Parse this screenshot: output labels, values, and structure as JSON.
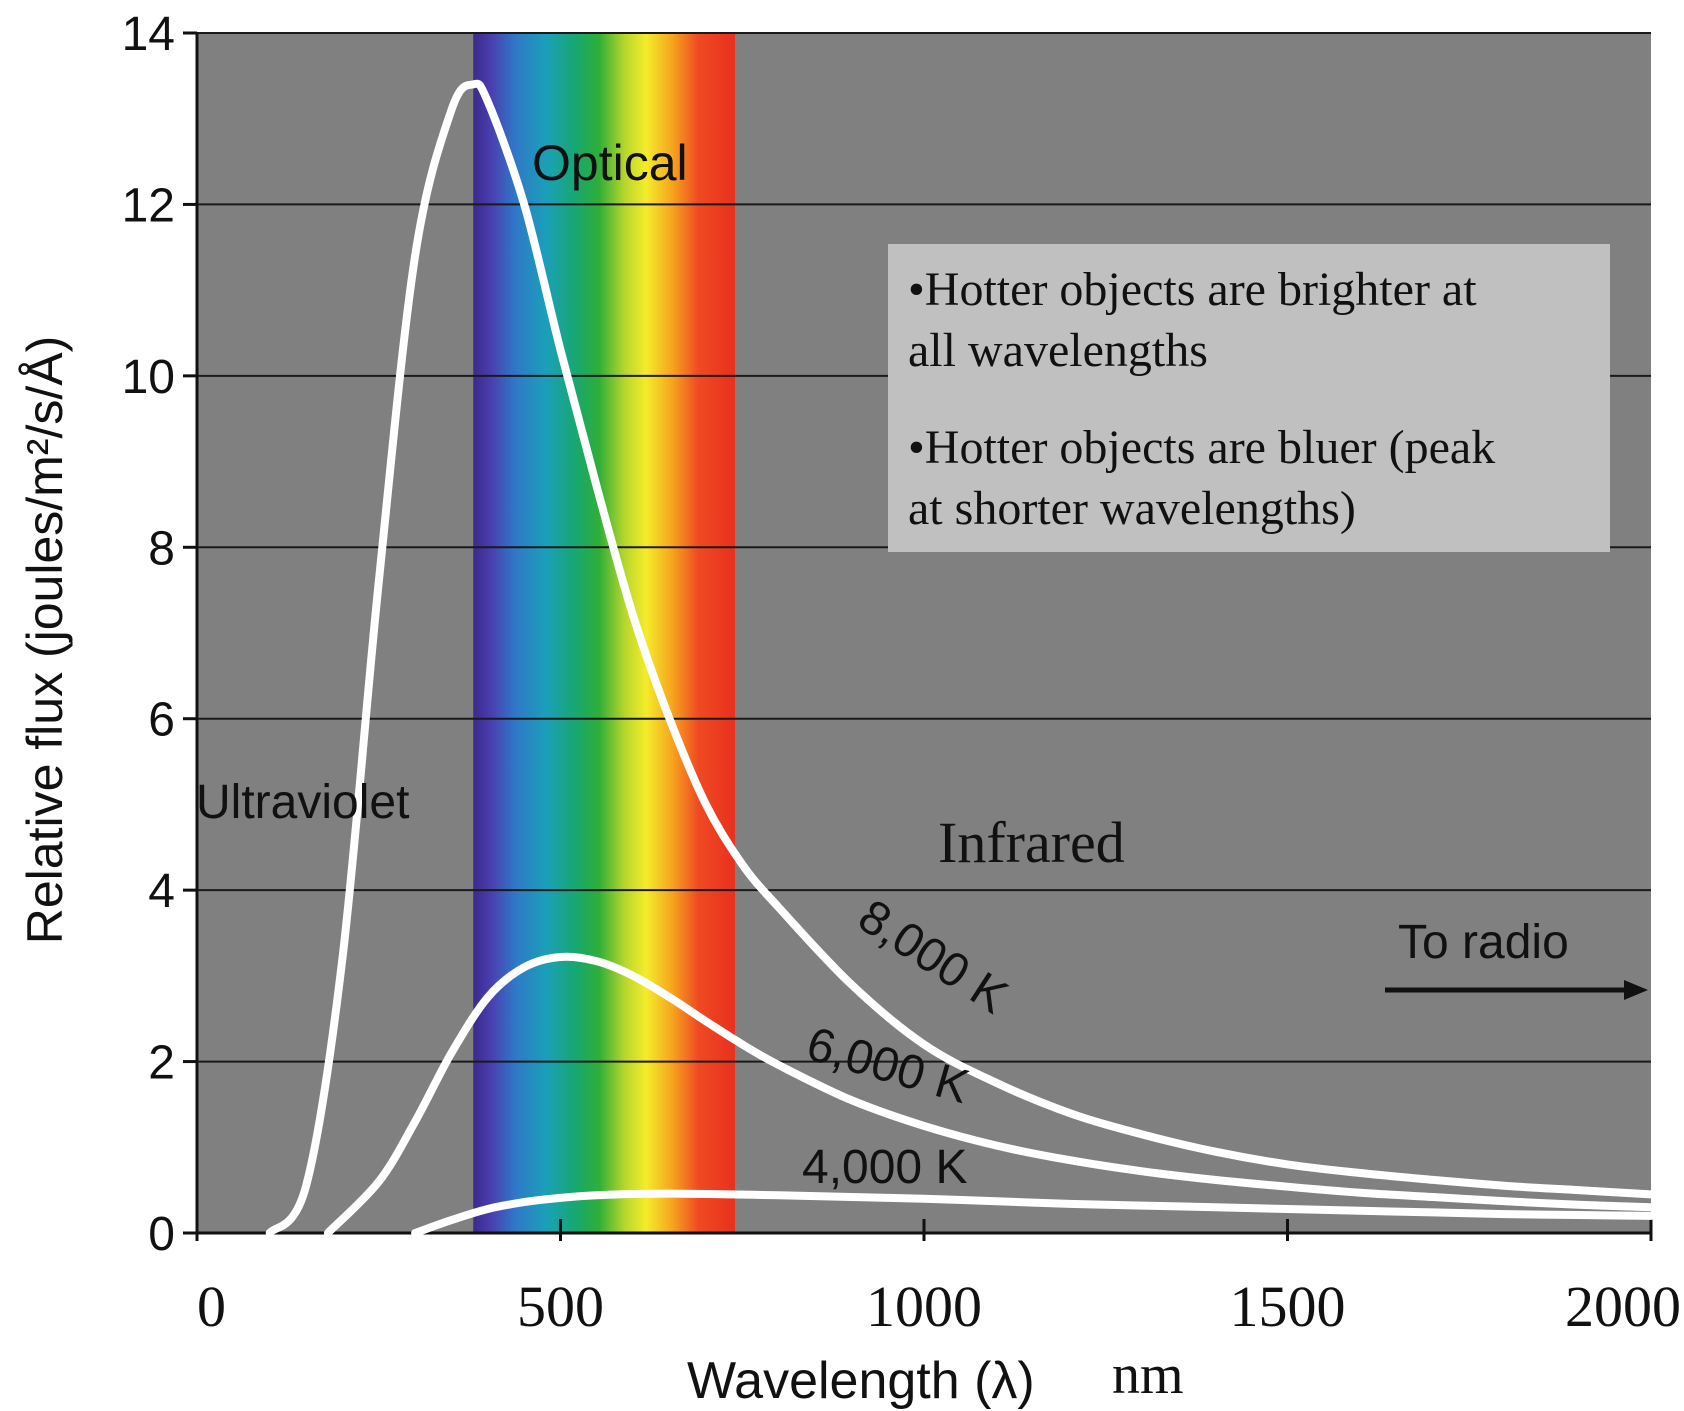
{
  "chart_data": {
    "type": "line",
    "title": "",
    "xlabel": "Wavelength (λ)",
    "xlabel_unit": "nm",
    "ylabel": "Relative flux (joules/m²/s/Å)",
    "xlim": [
      0,
      2000
    ],
    "ylim": [
      0,
      14
    ],
    "x_ticks": [
      "0",
      "500",
      "1000",
      "1500",
      "2000"
    ],
    "y_ticks": [
      "0",
      "2",
      "4",
      "6",
      "8",
      "10",
      "12",
      "14"
    ],
    "grid": "horizontal",
    "background_color": "#808080",
    "curve_color": "#ffffff",
    "optical_band": {
      "label": "Optical",
      "range_nm": [
        380,
        740
      ]
    },
    "region_labels": {
      "ultraviolet": "Ultraviolet",
      "infrared": "Infrared",
      "radio": "To radio"
    },
    "series": [
      {
        "name": "8,000 K",
        "x": [
          100,
          150,
          200,
          250,
          300,
          350,
          380,
          400,
          450,
          500,
          550,
          600,
          650,
          700,
          750,
          800,
          900,
          1000,
          1100,
          1200,
          1300,
          1400,
          1500,
          1600,
          1700,
          1800,
          1900,
          2000
        ],
        "values": [
          0.0,
          0.55,
          3.2,
          7.6,
          11.4,
          13.1,
          13.4,
          13.2,
          12.0,
          10.3,
          8.7,
          7.2,
          6.0,
          5.0,
          4.3,
          3.8,
          2.9,
          2.2,
          1.75,
          1.4,
          1.15,
          0.95,
          0.8,
          0.7,
          0.62,
          0.55,
          0.5,
          0.45
        ]
      },
      {
        "name": "6,000 K",
        "x": [
          180,
          250,
          300,
          350,
          400,
          450,
          500,
          550,
          600,
          650,
          700,
          750,
          800,
          900,
          1000,
          1100,
          1200,
          1300,
          1400,
          1500,
          1600,
          1700,
          1800,
          1900,
          2000
        ],
        "values": [
          0.0,
          0.6,
          1.3,
          2.1,
          2.75,
          3.1,
          3.22,
          3.17,
          3.0,
          2.75,
          2.47,
          2.2,
          1.96,
          1.55,
          1.25,
          1.02,
          0.85,
          0.72,
          0.62,
          0.54,
          0.47,
          0.42,
          0.37,
          0.33,
          0.3
        ]
      },
      {
        "name": "4,000 K",
        "x": [
          300,
          350,
          400,
          450,
          500,
          550,
          600,
          650,
          700,
          800,
          900,
          1000,
          1100,
          1200,
          1300,
          1400,
          1500,
          1600,
          1700,
          1800,
          1900,
          2000
        ],
        "values": [
          0.0,
          0.15,
          0.28,
          0.36,
          0.41,
          0.44,
          0.455,
          0.46,
          0.455,
          0.44,
          0.42,
          0.4,
          0.37,
          0.34,
          0.32,
          0.3,
          0.28,
          0.26,
          0.24,
          0.22,
          0.21,
          0.2
        ]
      }
    ],
    "annotations": [
      "•Hotter objects are brighter at all wavelengths",
      "•Hotter objects are bluer (peak at shorter wavelengths)"
    ]
  },
  "note": {
    "line1": "•Hotter objects are brighter at",
    "line2": "all wavelengths",
    "line3": "•Hotter objects are bluer (peak",
    "line4": "at shorter wavelengths)"
  }
}
